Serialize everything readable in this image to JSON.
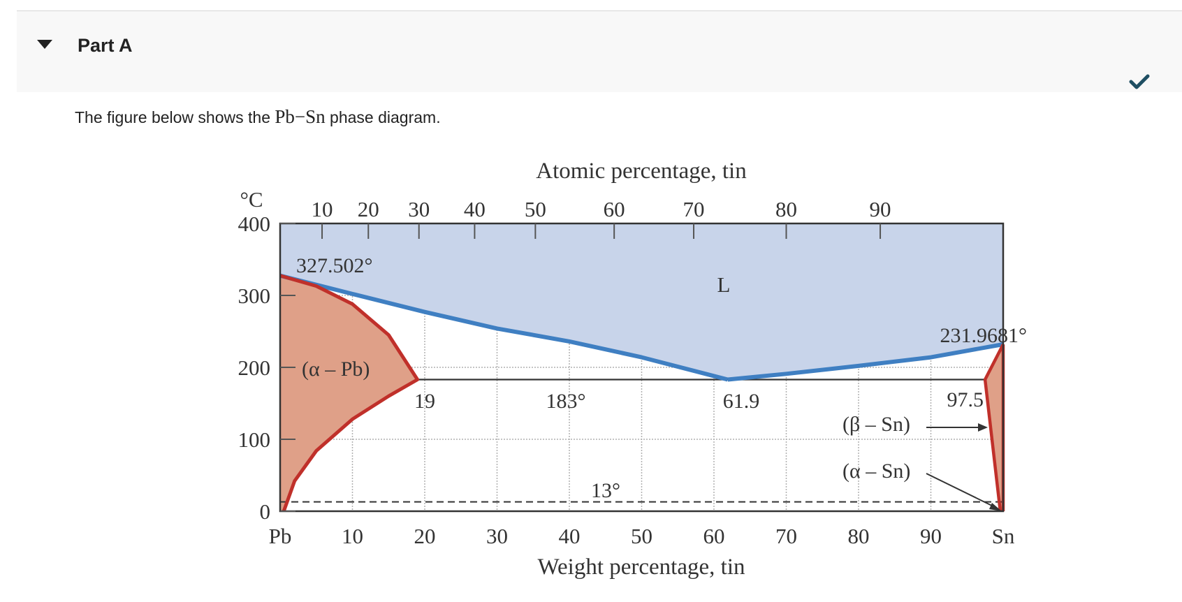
{
  "part": {
    "title": "Part A",
    "status_icon": "check-icon",
    "collapse_icon": "caret-down-icon"
  },
  "intro": {
    "prefix": "The figure below shows the ",
    "formula": "Pb−Sn",
    "suffix": " phase diagram."
  },
  "chart_data": {
    "type": "phase-diagram",
    "title": "",
    "top_axis_label": "Atomic percentage, tin",
    "top_ticks": [
      "10",
      "20",
      "30",
      "40",
      "50",
      "60",
      "70",
      "80",
      "90"
    ],
    "top_tick_wt": [
      5.8,
      12.2,
      19.2,
      26.9,
      35.3,
      46.2,
      57.2,
      70.0,
      83.0
    ],
    "xlabel": "Weight percentage, tin",
    "x_ticks": [
      "Pb",
      "10",
      "20",
      "30",
      "40",
      "50",
      "60",
      "70",
      "80",
      "90",
      "Sn"
    ],
    "x_tick_values": [
      0,
      10,
      20,
      30,
      40,
      50,
      60,
      70,
      80,
      90,
      100
    ],
    "ylabel": "°C",
    "y_ticks": [
      "0",
      "100",
      "200",
      "300",
      "400"
    ],
    "y_tick_values": [
      0,
      100,
      200,
      300,
      400
    ],
    "xlim": [
      0,
      100
    ],
    "ylim": [
      0,
      400
    ],
    "grid": true,
    "phases": {
      "liquid": "L",
      "alpha_pb": "(α – Pb)",
      "beta_sn": "(β – Sn)",
      "alpha_sn": "(α – Sn)"
    },
    "annotations": {
      "pb_melting": "327.502°",
      "sn_melting": "231.9681°",
      "eutectic_temp": "183°",
      "alpha_limit": "19",
      "eutectic_comp": "61.9",
      "beta_limit": "97.5",
      "transition": "13°"
    },
    "key_points": {
      "pb_melting_point": {
        "wt_sn": 0,
        "temp_c": 327.502
      },
      "sn_melting_point": {
        "wt_sn": 100,
        "temp_c": 231.9681
      },
      "eutectic": {
        "wt_sn": 61.9,
        "temp_c": 183
      },
      "alpha_pb_limit": {
        "wt_sn": 19,
        "temp_c": 183
      },
      "beta_sn_limit": {
        "wt_sn": 97.5,
        "temp_c": 183
      },
      "alpha_beta_sn_transition": {
        "temp_c": 13
      }
    },
    "liquidus_left": [
      [
        0,
        327.5
      ],
      [
        10,
        302
      ],
      [
        20,
        277
      ],
      [
        30,
        254
      ],
      [
        40,
        236
      ],
      [
        50,
        214
      ],
      [
        61.9,
        183
      ]
    ],
    "liquidus_right": [
      [
        61.9,
        183
      ],
      [
        70,
        191
      ],
      [
        80,
        202
      ],
      [
        90,
        214
      ],
      [
        100,
        232
      ]
    ],
    "solvus_pb": [
      [
        0,
        327.5
      ],
      [
        5,
        313
      ],
      [
        10,
        288
      ],
      [
        15,
        245
      ],
      [
        19,
        183
      ],
      [
        15,
        160
      ],
      [
        10,
        128
      ],
      [
        5,
        84
      ],
      [
        2,
        42
      ],
      [
        0.5,
        0
      ]
    ],
    "solvus_sn": [
      [
        97.5,
        183
      ],
      [
        99.6,
        0
      ]
    ],
    "colors": {
      "liquid_fill": "#c8d4ea",
      "solid_fill": "#dfa088",
      "liquidus_line": "#3f7fc2",
      "solvus_line": "#c0302a",
      "frame": "#333333",
      "check": "#1f4f63"
    }
  }
}
